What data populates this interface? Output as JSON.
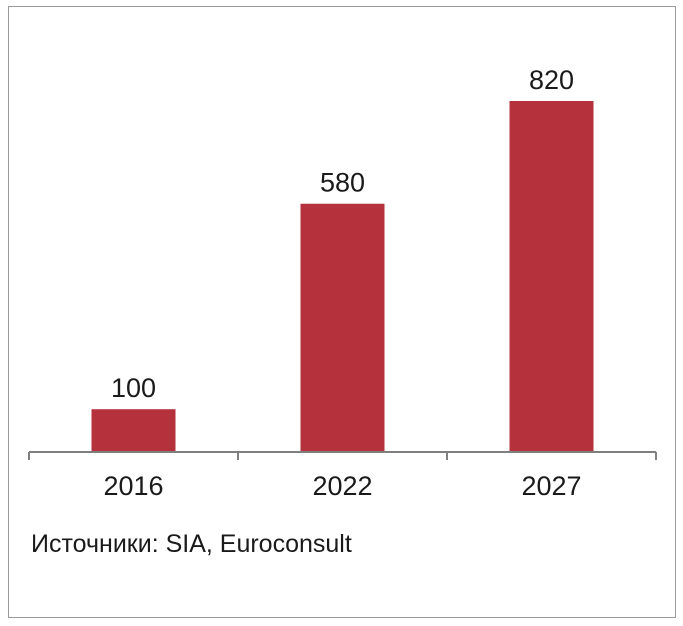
{
  "chart_data": {
    "type": "bar",
    "categories": [
      "2016",
      "2022",
      "2027"
    ],
    "values": [
      100,
      580,
      820
    ],
    "data_labels": [
      "100",
      "580",
      "820"
    ],
    "ylim": [
      0,
      820
    ],
    "grid": false,
    "legend": "none",
    "bar_color": "#b5323c",
    "axis_color": "#7f7f7f"
  },
  "source": "Источники: SIA, Euroconsult"
}
